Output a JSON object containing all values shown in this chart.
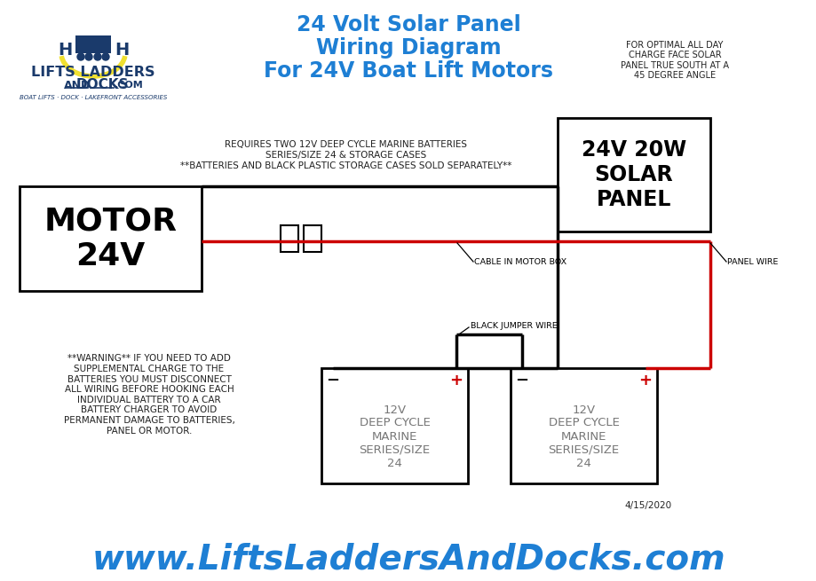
{
  "bg_color": "#ffffff",
  "title_lines": [
    "24 Volt Solar Panel",
    "Wiring Diagram",
    "For 24V Boat Lift Motors"
  ],
  "title_color": "#1e7fd4",
  "title_fontsize": 17,
  "brand_color": "#1a3a6b",
  "brand_sub": "BOAT LIFTS · DOCK · LAKEFRONT ACCESSORIES",
  "solar_note": "FOR OPTIMAL ALL DAY\nCHARGE FACE SOLAR\nPANEL TRUE SOUTH AT A\n45 DEGREE ANGLE",
  "requires_text": "REQUIRES TWO 12V DEEP CYCLE MARINE BATTERIES\nSERIES/SIZE 24 & STORAGE CASES\n**BATTERIES AND BLACK PLASTIC STORAGE CASES SOLD SEPARATELY**",
  "warning_text": "**WARNING** IF YOU NEED TO ADD\nSUPPLEMENTAL CHARGE TO THE\nBATTERIES YOU MUST DISCONNECT\nALL WIRING BEFORE HOOKING EACH\nINDIVIDUAL BATTERY TO A CAR\nBATTERY CHARGER TO AVOID\nPERMANENT DAMAGE TO BATTERIES,\nPANEL OR MOTOR.",
  "motor_label": "MOTOR\n24V",
  "solar_label": "24V 20W\nSOLAR\nPANEL",
  "battery_label": "12V\nDEEP CYCLE\nMARINE\nSERIES/SIZE\n24",
  "cable_label": "CABLE IN MOTOR BOX",
  "panel_wire_label": "PANEL WIRE",
  "jumper_label": "BLACK JUMPER WIRE",
  "date_label": "4/15/2020",
  "website": "www.LiftsLaddersAndDocks.com",
  "website_color": "#1e7fd4",
  "wire_black": "#000000",
  "wire_red": "#cc0000",
  "box_edge": "#000000",
  "plus_color": "#cc0000",
  "minus_color": "#111111",
  "text_color_dark": "#222222",
  "arc_color": "#f0e030",
  "logo_blue": "#1a3a6b"
}
